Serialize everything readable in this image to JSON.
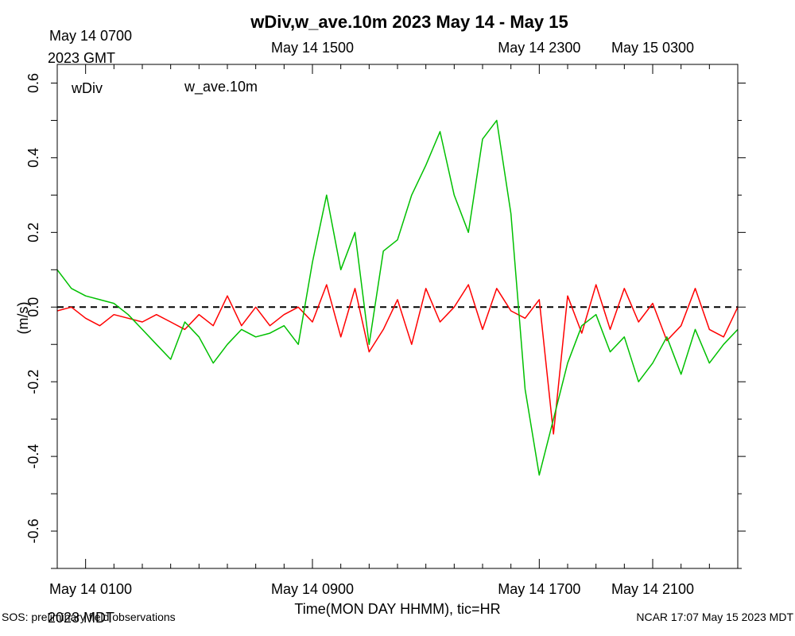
{
  "chart_data": {
    "type": "line",
    "title": "wDiv,w_ave.10m 2023 May 14 - May 15",
    "ylabel": "(m/s)",
    "xlabel": "Time(MON DAY HHMM), tic=HR",
    "ylim": [
      -0.7,
      0.65
    ],
    "xlim_hours_mdt": [
      0,
      24
    ],
    "y_ticks": [
      "-0.6",
      "-0.4",
      "-0.2",
      "0.0",
      "0.2",
      "0.4",
      "0.6"
    ],
    "y_tick_values": [
      -0.6,
      -0.4,
      -0.2,
      0.0,
      0.2,
      0.4,
      0.6
    ],
    "x_major_hours": [
      1,
      9,
      17,
      21
    ],
    "bottom_tick_labels": [
      "May 14 0100",
      "May 14 0900",
      "May 14 1700",
      "May 14 2100"
    ],
    "bottom_timezone_label": "2023 MDT",
    "top_tick_labels": [
      "May 14 0700",
      "May 14 1500",
      "May 14 2300",
      "May 15 0300"
    ],
    "top_timezone_label": "2023 GMT",
    "zero_line": "dashed",
    "legend_position": "top-left",
    "series": [
      {
        "name": "wDiv",
        "color": "#ff0000",
        "x_hours": [
          0.0,
          0.5,
          1.0,
          1.5,
          2.0,
          2.5,
          3.0,
          3.5,
          4.0,
          4.5,
          5.0,
          5.5,
          6.0,
          6.5,
          7.0,
          7.5,
          8.0,
          8.5,
          9.0,
          9.5,
          10.0,
          10.5,
          11.0,
          11.5,
          12.0,
          12.5,
          13.0,
          13.5,
          14.0,
          14.5,
          15.0,
          15.5,
          16.0,
          16.5,
          17.0,
          17.5,
          18.0,
          18.5,
          19.0,
          19.5,
          20.0,
          20.5,
          21.0,
          21.5,
          22.0,
          22.5,
          23.0,
          23.5,
          24.0
        ],
        "values": [
          -0.01,
          0.0,
          -0.03,
          -0.05,
          -0.02,
          -0.03,
          -0.04,
          -0.02,
          -0.04,
          -0.06,
          -0.02,
          -0.05,
          0.03,
          -0.05,
          0.0,
          -0.05,
          -0.02,
          0.0,
          -0.04,
          0.06,
          -0.08,
          0.05,
          -0.12,
          -0.06,
          0.02,
          -0.1,
          0.05,
          -0.04,
          0.0,
          0.06,
          -0.06,
          0.05,
          -0.01,
          -0.03,
          0.02,
          -0.34,
          0.03,
          -0.07,
          0.06,
          -0.06,
          0.05,
          -0.04,
          0.01,
          -0.09,
          -0.05,
          0.05,
          -0.06,
          -0.08,
          0.0
        ]
      },
      {
        "name": "w_ave.10m",
        "color": "#00c000",
        "x_hours": [
          0.0,
          0.5,
          1.0,
          1.5,
          2.0,
          2.5,
          3.0,
          3.5,
          4.0,
          4.5,
          5.0,
          5.5,
          6.0,
          6.5,
          7.0,
          7.5,
          8.0,
          8.5,
          9.0,
          9.5,
          10.0,
          10.5,
          11.0,
          11.5,
          12.0,
          12.5,
          13.0,
          13.5,
          14.0,
          14.5,
          15.0,
          15.5,
          16.0,
          16.5,
          17.0,
          17.5,
          18.0,
          18.5,
          19.0,
          19.5,
          20.0,
          20.5,
          21.0,
          21.5,
          22.0,
          22.5,
          23.0,
          23.5,
          24.0
        ],
        "values": [
          0.1,
          0.05,
          0.03,
          0.02,
          0.01,
          -0.02,
          -0.06,
          -0.1,
          -0.14,
          -0.04,
          -0.08,
          -0.15,
          -0.1,
          -0.06,
          -0.08,
          -0.07,
          -0.05,
          -0.1,
          0.12,
          0.3,
          0.1,
          0.2,
          -0.1,
          0.15,
          0.18,
          0.3,
          0.38,
          0.47,
          0.3,
          0.2,
          0.45,
          0.5,
          0.25,
          -0.22,
          -0.45,
          -0.3,
          -0.15,
          -0.05,
          -0.02,
          -0.12,
          -0.08,
          -0.2,
          -0.15,
          -0.08,
          -0.18,
          -0.06,
          -0.15,
          -0.1,
          -0.06
        ]
      }
    ]
  },
  "footer": {
    "left": "SOS: preliminary field observations",
    "right": "NCAR 17:07 May 15 2023 MDT"
  }
}
